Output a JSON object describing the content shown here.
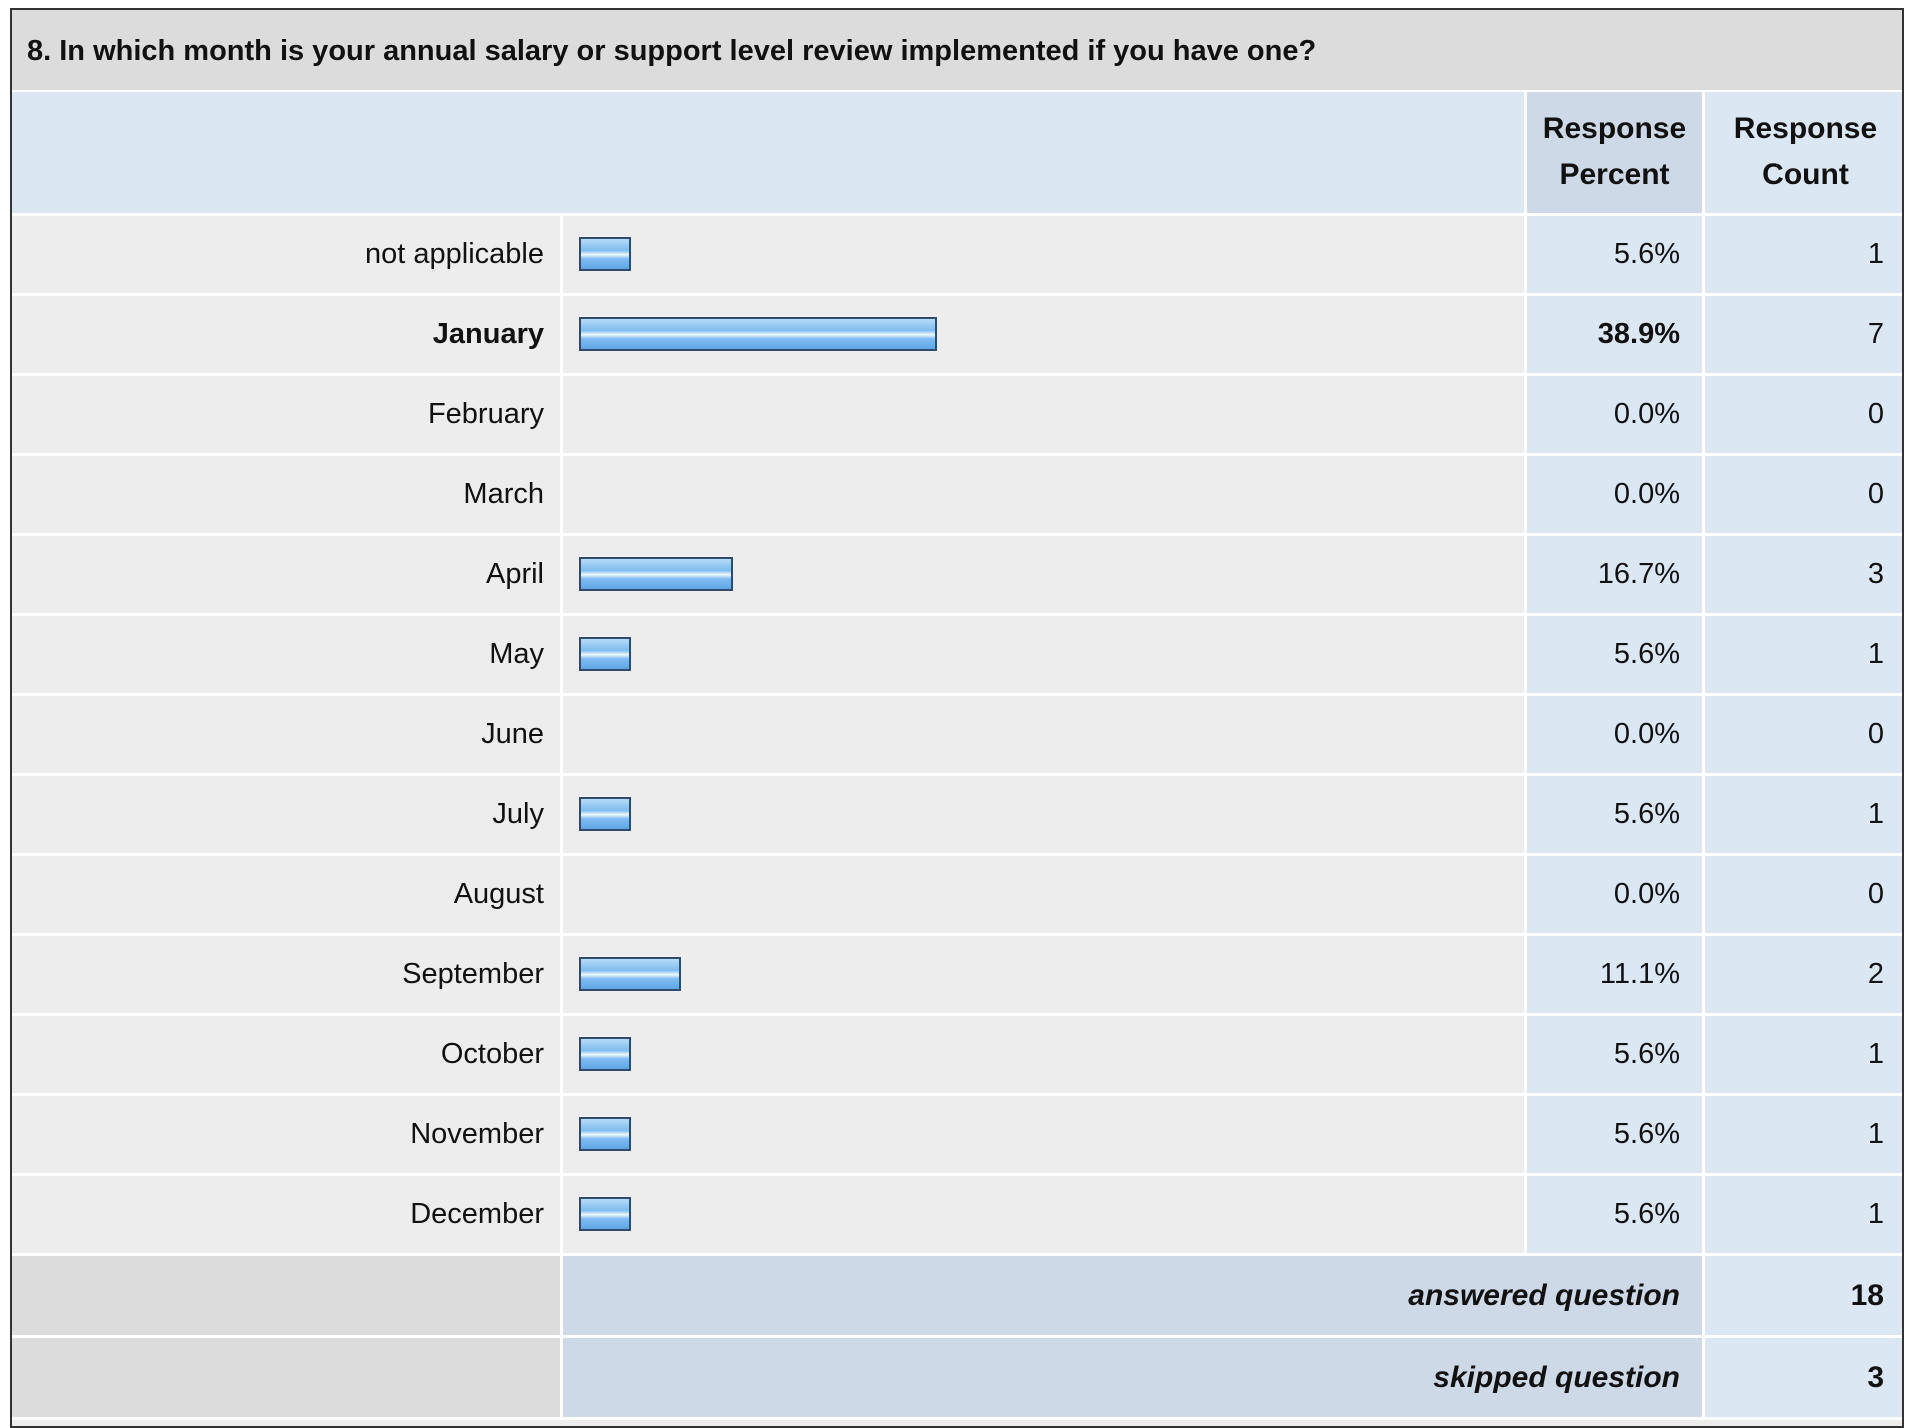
{
  "question": "8. In which month is your annual salary or support level review implemented if you have one?",
  "headers": {
    "percent_line1": "Response",
    "percent_line2": "Percent",
    "count_line1": "Response",
    "count_line2": "Count"
  },
  "chart_data": {
    "type": "bar",
    "orientation": "horizontal",
    "categories": [
      "not applicable",
      "January",
      "February",
      "March",
      "April",
      "May",
      "June",
      "July",
      "August",
      "September",
      "October",
      "November",
      "December"
    ],
    "percent_labels": [
      "5.6%",
      "38.9%",
      "0.0%",
      "0.0%",
      "16.7%",
      "5.6%",
      "0.0%",
      "5.6%",
      "0.0%",
      "11.1%",
      "5.6%",
      "5.6%",
      "5.6%"
    ],
    "values": [
      5.6,
      38.9,
      0.0,
      0.0,
      16.7,
      5.6,
      0.0,
      5.6,
      0.0,
      11.1,
      5.6,
      5.6,
      5.6
    ],
    "counts": [
      "1",
      "7",
      "0",
      "0",
      "3",
      "1",
      "0",
      "1",
      "0",
      "2",
      "1",
      "1",
      "1"
    ],
    "highlighted": "January",
    "xlim": [
      0,
      100
    ]
  },
  "summary": {
    "answered_label": "answered question",
    "answered_value": "18",
    "skipped_label": "skipped question",
    "skipped_value": "3"
  },
  "colors": {
    "bar_border": "#2f4b6e",
    "bar_fill": "#7fbcf0",
    "header_bg": "#dce7f4",
    "row_bg": "#ededed"
  }
}
